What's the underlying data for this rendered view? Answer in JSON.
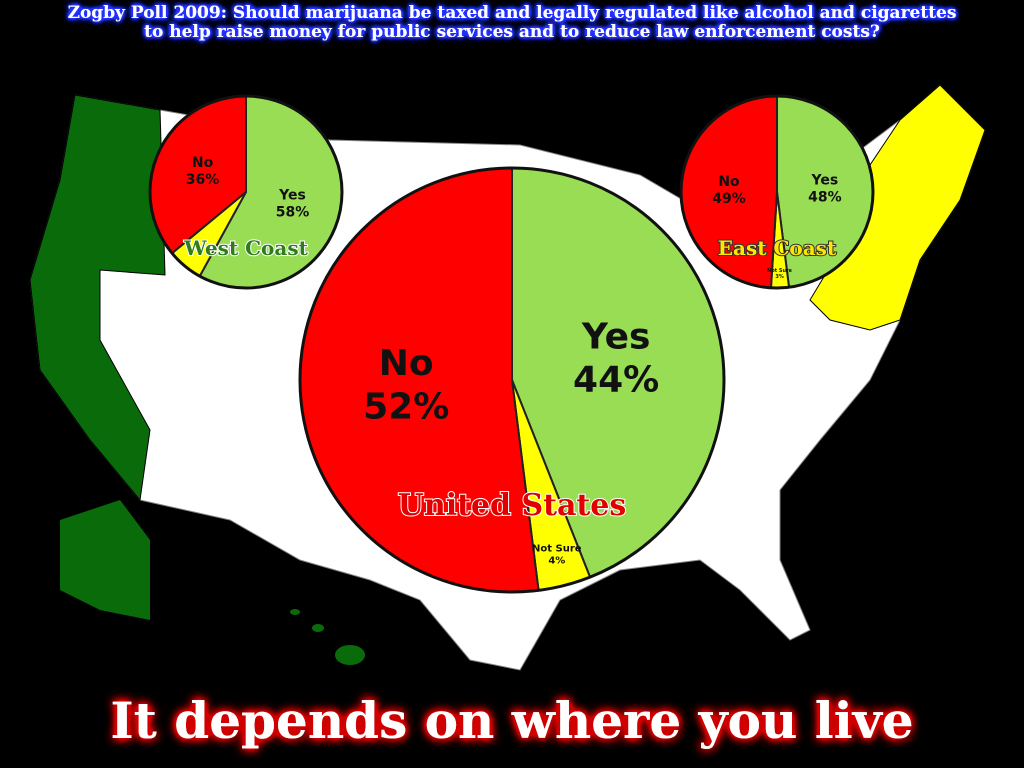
{
  "title": "Zogby Poll 2009: Should marijuana be taxed and legally regulated like alcohol and cigarettes to help raise money for public services and to reduce law enforcement costs?",
  "footer": "It depends on where you live",
  "chart_data": [
    {
      "type": "pie",
      "title": "West Coast",
      "categories": [
        "Yes",
        null,
        "No"
      ],
      "values": [
        58,
        6,
        36
      ],
      "value_labels": [
        "58%",
        null,
        "36%"
      ],
      "colors": [
        "#99dd55",
        "#ffff00",
        "#ff0000"
      ]
    },
    {
      "type": "pie",
      "title": "East Coast",
      "categories": [
        "Yes",
        "Not Sure",
        "No"
      ],
      "values": [
        48,
        3,
        49
      ],
      "value_labels": [
        "48%",
        "3%",
        "49%"
      ],
      "colors": [
        "#99dd55",
        "#ffff00",
        "#ff0000"
      ]
    },
    {
      "type": "pie",
      "title": "United States",
      "categories": [
        "Yes",
        "Not Sure",
        "No"
      ],
      "values": [
        44,
        4,
        52
      ],
      "value_labels": [
        "44%",
        "4%",
        "52%"
      ],
      "colors": [
        "#99dd55",
        "#ffff00",
        "#ff0000"
      ]
    }
  ]
}
